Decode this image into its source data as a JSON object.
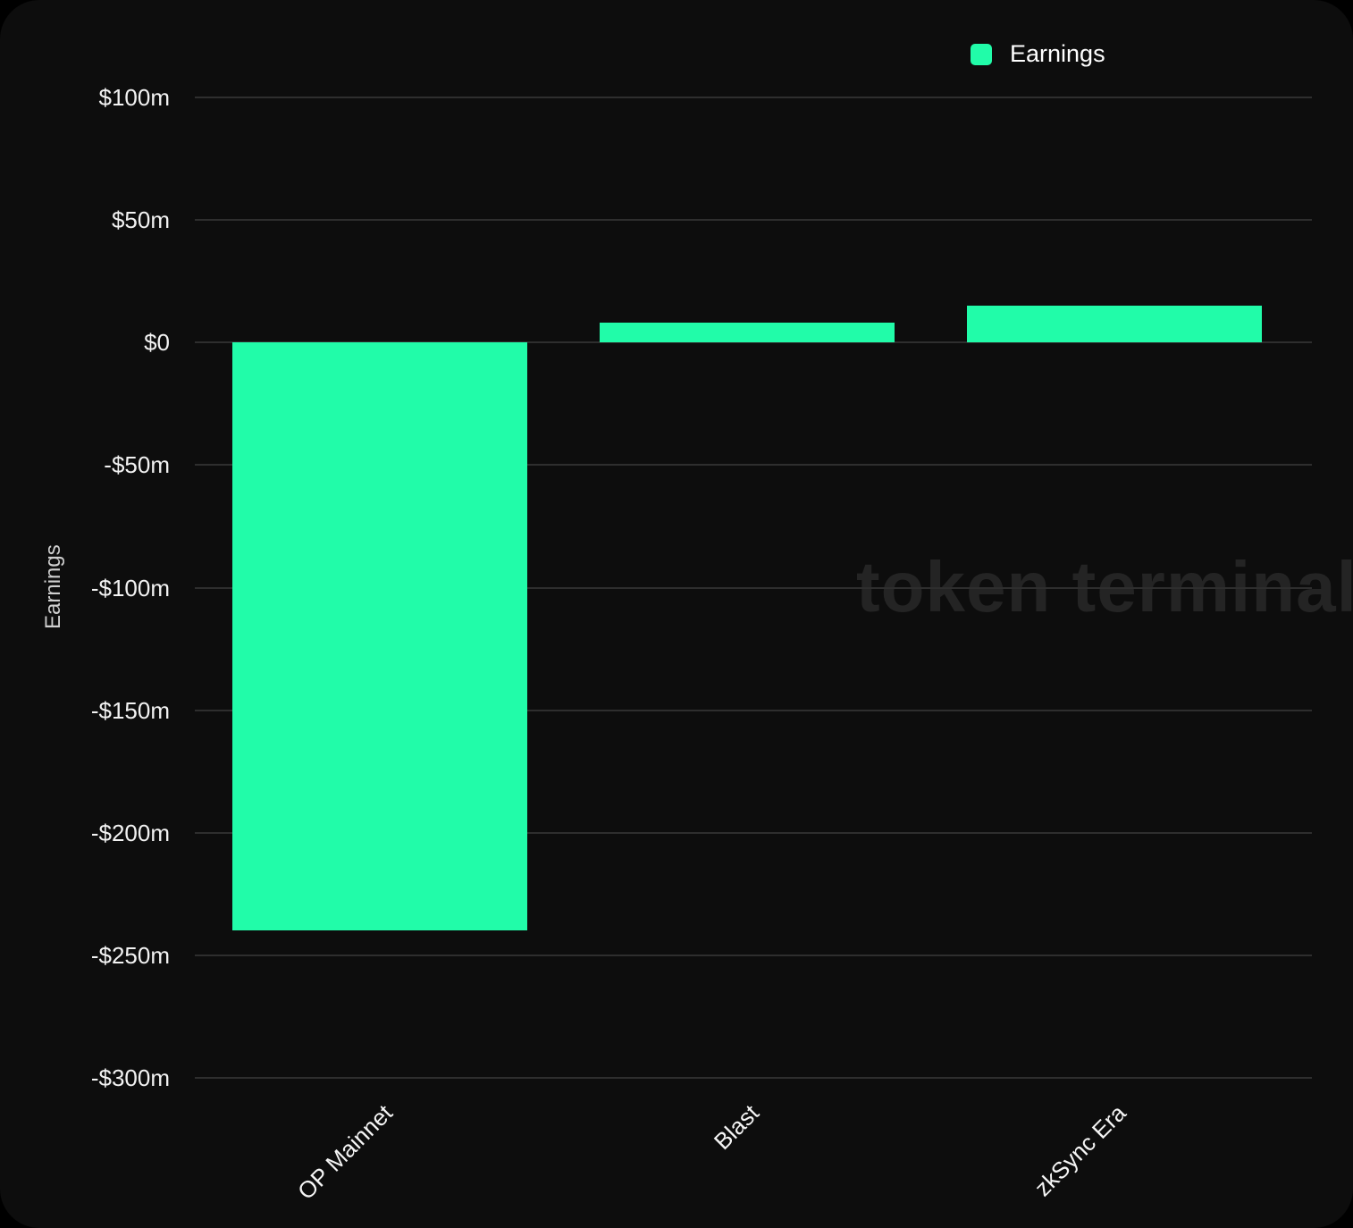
{
  "legend": {
    "label": "Earnings"
  },
  "y_axis": {
    "title": "Earnings",
    "ticks": [
      "$100m",
      "$50m",
      "$0",
      "-$50m",
      "-$100m",
      "-$150m",
      "-$200m",
      "-$250m",
      "-$300m"
    ]
  },
  "watermark": "token terminal",
  "colors": {
    "bar": "#21fca9",
    "card_background": "#0d0d0d",
    "page_background": "#000000",
    "gridline": "#2e2e2e",
    "tick_text": "#f2f2f2",
    "axis_title_text": "#cfcfcf",
    "legend_text": "#ffffff",
    "watermark_text": "#242424"
  },
  "chart_data": {
    "type": "bar",
    "title": "",
    "xlabel": "",
    "ylabel": "Earnings",
    "categories": [
      "OP Mainnet",
      "Blast",
      "zkSync Era"
    ],
    "series": [
      {
        "name": "Earnings",
        "values": [
          -240,
          8,
          15
        ]
      }
    ],
    "unit": "USD millions",
    "ylim": [
      -300,
      100
    ],
    "ytick_values": [
      100,
      50,
      0,
      -50,
      -100,
      -150,
      -200,
      -250,
      -300
    ],
    "grid": true,
    "legend_position": "top-right"
  }
}
